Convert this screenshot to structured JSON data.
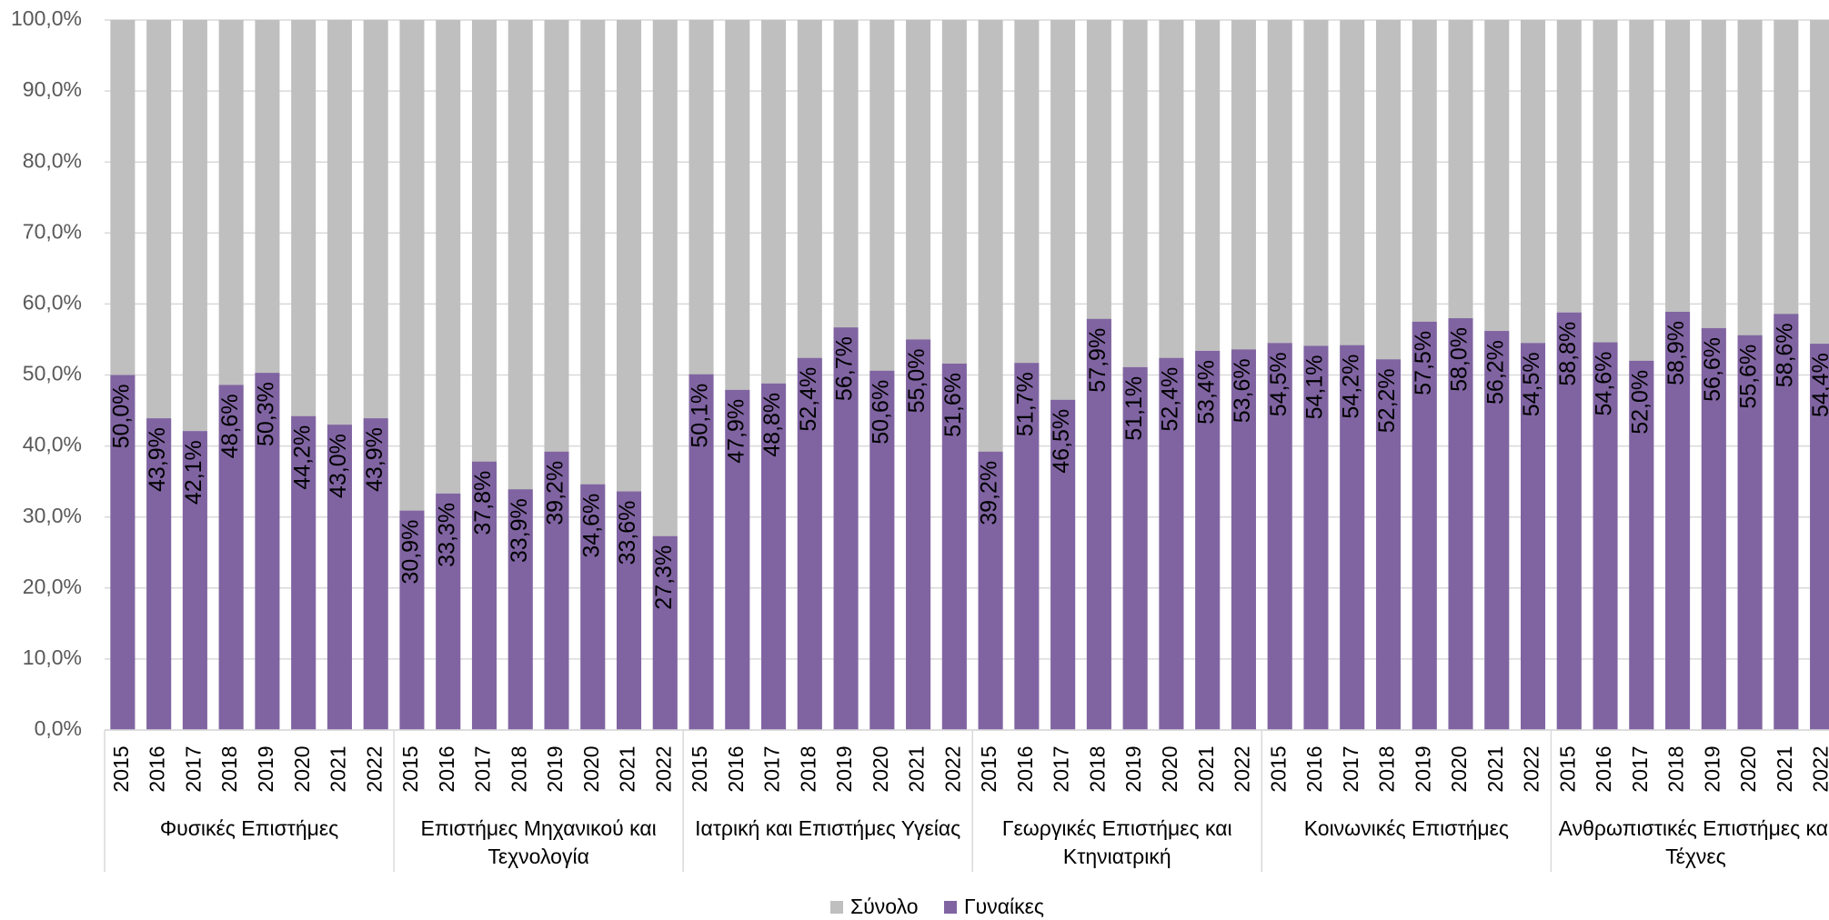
{
  "chart_data": {
    "type": "bar",
    "categories": [
      "2015",
      "2016",
      "2017",
      "2018",
      "2019",
      "2020",
      "2021",
      "2022",
      "2015",
      "2016",
      "2017",
      "2018",
      "2019",
      "2020",
      "2021",
      "2022",
      "2015",
      "2016",
      "2017",
      "2018",
      "2019",
      "2020",
      "2021",
      "2022",
      "2015",
      "2016",
      "2017",
      "2018",
      "2019",
      "2020",
      "2021",
      "2022",
      "2015",
      "2016",
      "2017",
      "2018",
      "2019",
      "2020",
      "2021",
      "2022",
      "2015",
      "2016",
      "2017",
      "2018",
      "2019",
      "2020",
      "2021",
      "2022"
    ],
    "category_groups": [
      "Φυσικές Επιστήμες",
      "Επιστήμες Μηχανικού και Τεχνολογία",
      "Ιατρική και Επιστήμες Υγείας",
      "Γεωργικές Επιστήμες και Κτηνιατρική",
      "Κοινωνικές Επιστήμες",
      "Ανθρωπιστικές Επιστήμες και Τέχνες"
    ],
    "series": [
      {
        "name": "Σύνολο",
        "color": "#bfbfbf",
        "values": [
          100,
          100,
          100,
          100,
          100,
          100,
          100,
          100,
          100,
          100,
          100,
          100,
          100,
          100,
          100,
          100,
          100,
          100,
          100,
          100,
          100,
          100,
          100,
          100,
          100,
          100,
          100,
          100,
          100,
          100,
          100,
          100,
          100,
          100,
          100,
          100,
          100,
          100,
          100,
          100,
          100,
          100,
          100,
          100,
          100,
          100,
          100,
          100
        ]
      },
      {
        "name": "Γυναίκες",
        "color": "#8064a2",
        "values": [
          50.0,
          43.9,
          42.1,
          48.6,
          50.3,
          44.2,
          43.0,
          43.9,
          30.9,
          33.3,
          37.8,
          33.9,
          39.2,
          34.6,
          33.6,
          27.3,
          50.1,
          47.9,
          48.8,
          52.4,
          56.7,
          50.6,
          55.0,
          51.6,
          39.2,
          51.7,
          46.5,
          57.9,
          51.1,
          52.4,
          53.4,
          53.6,
          54.5,
          54.1,
          54.2,
          52.2,
          57.5,
          58.0,
          56.2,
          54.5,
          58.8,
          54.6,
          52.0,
          58.9,
          56.6,
          55.6,
          58.6,
          54.4
        ],
        "value_labels": [
          "50,0%",
          "43,9%",
          "42,1%",
          "48,6%",
          "50,3%",
          "44,2%",
          "43,0%",
          "43,9%",
          "30,9%",
          "33,3%",
          "37,8%",
          "33,9%",
          "39,2%",
          "34,6%",
          "33,6%",
          "27,3%",
          "50,1%",
          "47,9%",
          "48,8%",
          "52,4%",
          "56,7%",
          "50,6%",
          "55,0%",
          "51,6%",
          "39,2%",
          "51,7%",
          "46,5%",
          "57,9%",
          "51,1%",
          "52,4%",
          "53,4%",
          "53,6%",
          "54,5%",
          "54,1%",
          "54,2%",
          "52,2%",
          "57,5%",
          "58,0%",
          "56,2%",
          "54,5%",
          "58,8%",
          "54,6%",
          "52,0%",
          "58,9%",
          "56,6%",
          "55,6%",
          "58,6%",
          "54,4%"
        ]
      }
    ],
    "ylim": [
      0,
      100
    ],
    "yticks": [
      {
        "value": 0,
        "label": "0,0%"
      },
      {
        "value": 10,
        "label": "10,0%"
      },
      {
        "value": 20,
        "label": "20,0%"
      },
      {
        "value": 30,
        "label": "30,0%"
      },
      {
        "value": 40,
        "label": "40,0%"
      },
      {
        "value": 50,
        "label": "50,0%"
      },
      {
        "value": 60,
        "label": "60,0%"
      },
      {
        "value": 70,
        "label": "70,0%"
      },
      {
        "value": 80,
        "label": "80,0%"
      },
      {
        "value": 90,
        "label": "90,0%"
      },
      {
        "value": 100,
        "label": "100,0%"
      }
    ],
    "grid": true,
    "legend": "bottom"
  }
}
